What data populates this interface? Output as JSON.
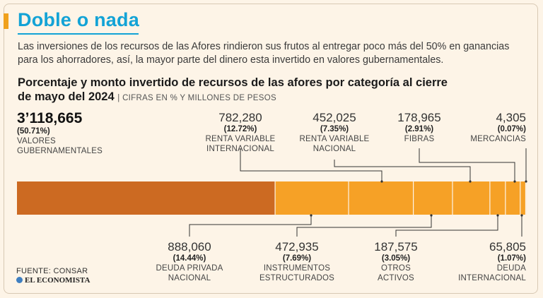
{
  "header": {
    "title": "Doble o nada",
    "intro": "Las inversiones de los recursos de las Afores rindieron sus frutos al entregar poco más del 50% en ganancias para los ahorradores, así, la mayor parte del dinero esta invertido en valores gubernamentales.",
    "subtitle": "Porcentaje y monto invertido de recursos de las afores por categoría al cierre de mayo del 2024",
    "unit_note": "CIFRAS EN % Y MILLONES DE PESOS"
  },
  "colors": {
    "accent": "#f0a11d",
    "title": "#13a3d6",
    "first_segment": "#cc6a22",
    "segments": "#f6a126",
    "leader": "#333333"
  },
  "chart_data": {
    "type": "bar",
    "orientation": "horizontal-stacked",
    "title": "Porcentaje y monto invertido de recursos de las afores por categoría al cierre de mayo del 2024",
    "unit": "CIFRAS EN % Y MILLONES DE PESOS",
    "series": [
      {
        "value": "3’118,665",
        "percent_label": "(50.71%)",
        "percent": 50.71,
        "name": [
          "VALORES",
          "GUBERNAMENTALES"
        ],
        "label_side": "top"
      },
      {
        "value": "888,060",
        "percent_label": "(14.44%)",
        "percent": 14.44,
        "name": [
          "DEUDA PRIVADA",
          "NACIONAL"
        ],
        "label_side": "bottom"
      },
      {
        "value": "782,280",
        "percent_label": "(12.72%)",
        "percent": 12.72,
        "name": [
          "RENTA VARIABLE",
          "INTERNACIONAL"
        ],
        "label_side": "top"
      },
      {
        "value": "472,935",
        "percent_label": "(7.69%)",
        "percent": 7.69,
        "name": [
          "INSTRUMENTOS",
          "ESTRUCTURADOS"
        ],
        "label_side": "bottom"
      },
      {
        "value": "452,025",
        "percent_label": "(7.35%)",
        "percent": 7.35,
        "name": [
          "RENTA VARIABLE",
          "NACIONAL"
        ],
        "label_side": "top"
      },
      {
        "value": "187,575",
        "percent_label": "(3.05%)",
        "percent": 3.05,
        "name": [
          "OTROS",
          "ACTIVOS"
        ],
        "label_side": "bottom"
      },
      {
        "value": "178,965",
        "percent_label": "(2.91%)",
        "percent": 2.91,
        "name": [
          "FIBRAS"
        ],
        "label_side": "top"
      },
      {
        "value": "65,805",
        "percent_label": "(1.07%)",
        "percent": 1.07,
        "name": [
          "DEUDA",
          "INTERNACIONAL"
        ],
        "label_side": "bottom"
      },
      {
        "value": "4,305",
        "percent_label": "(0.07%)",
        "percent": 0.07,
        "name": [
          "MERCANCIAS"
        ],
        "label_side": "top"
      }
    ]
  },
  "footer": {
    "source": "FUENTE: CONSAR",
    "brand": "EL ECONOMISTA"
  }
}
